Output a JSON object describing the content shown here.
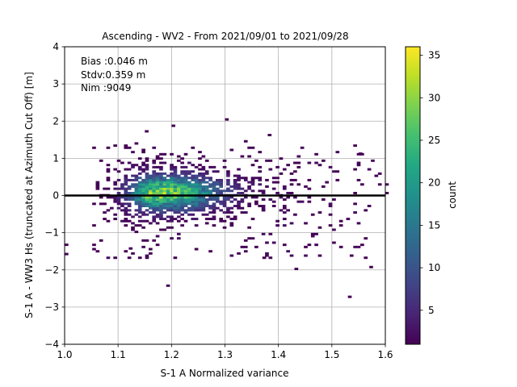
{
  "chart_data": {
    "type": "heatmap",
    "title": "Ascending - WV2 - From 2021/09/01 to 2021/09/28",
    "xlabel": "S-1 A Normalized variance",
    "ylabel": "S-1 A - WW3 Hs (truncated at Azimuth Cut Off) [m]",
    "xlim": [
      1.0,
      1.6
    ],
    "ylim": [
      -4,
      4
    ],
    "xticks": [
      "1.0",
      "1.1",
      "1.2",
      "1.3",
      "1.4",
      "1.5",
      "1.6"
    ],
    "yticks": [
      "−4",
      "−3",
      "−2",
      "−1",
      "0",
      "1",
      "2",
      "3",
      "4"
    ],
    "grid": true,
    "annotation": [
      "Bias :0.046 m",
      "Stdv:0.359 m",
      "Nim :9049"
    ],
    "reference_line": {
      "y": 0,
      "color": "#000000"
    },
    "colorbar": {
      "label": "count",
      "range": [
        1,
        36
      ],
      "ticks": [
        "5",
        "10",
        "15",
        "20",
        "25",
        "30",
        "35"
      ],
      "colormap": "viridis"
    },
    "density_core": {
      "x": 1.17,
      "y": 0.05,
      "peak_count": 36
    },
    "outliers": [
      [
        1.2,
        1.85
      ],
      [
        1.3,
        2.02
      ],
      [
        1.38,
        1.6
      ],
      [
        1.15,
        1.7
      ],
      [
        1.43,
        -2.0
      ],
      [
        1.53,
        -2.75
      ],
      [
        1.57,
        -1.95
      ],
      [
        1.19,
        -2.45
      ],
      [
        1.0,
        -1.35
      ],
      [
        1.0,
        -1.6
      ],
      [
        1.12,
        -1.45
      ],
      [
        1.37,
        -1.7
      ],
      [
        1.55,
        1.1
      ]
    ]
  }
}
